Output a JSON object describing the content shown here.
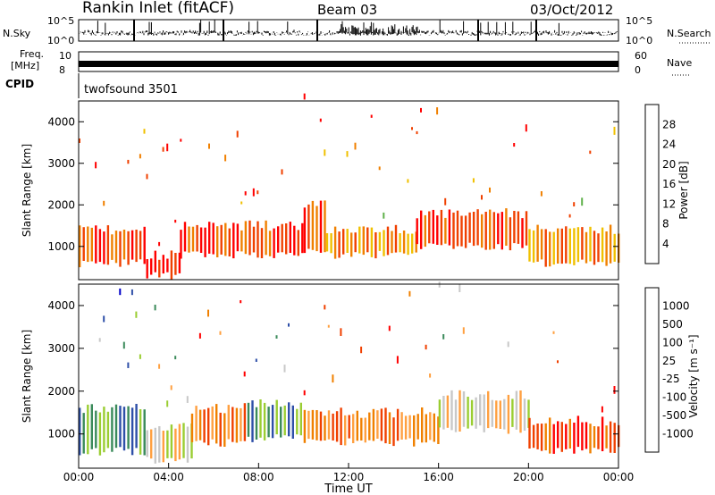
{
  "header": {
    "station": "Rankin Inlet (fitACF)",
    "beam": "Beam 03",
    "date": "03/Oct/2012"
  },
  "strips": {
    "nsky_label": "N.Sky",
    "nsky_ticks": [
      "10^5",
      "10^0"
    ],
    "nsearch_label": "N.Search",
    "nsearch_ticks": [
      "10^5",
      "10^0"
    ],
    "freq_label": "Freq.",
    "freq_unit": "[MHz]",
    "freq_ticks": [
      "10",
      "8"
    ],
    "nave_label": "Nave",
    "nave_ticks": [
      "60",
      "0"
    ],
    "cpid_label": "CPID",
    "cpid_value": "twofsound 3501"
  },
  "colors": {
    "power": [
      "#0000ff",
      "#2e4fa8",
      "#3a8a5a",
      "#5fb04a",
      "#f0c000",
      "#f08000",
      "#f04000",
      "#ff0000"
    ],
    "velocity": [
      "#ff0000",
      "#f04000",
      "#f08000",
      "#ffa040",
      "#c8c8c8",
      "#9acd32",
      "#3a8a5a",
      "#2e4fa8",
      "#0000c8"
    ]
  },
  "chart_data": [
    {
      "type": "heatmap",
      "name": "power",
      "xlabel": "",
      "ylabel": "Slant Range [km]",
      "yticks": [
        "1000",
        "2000",
        "3000",
        "4000"
      ],
      "ylim": [
        200,
        4500
      ],
      "xlim": [
        0,
        24
      ],
      "colorbar_label": "Power [dB]",
      "colorbar_ticks": [
        "4",
        "8",
        "12",
        "16",
        "20",
        "24",
        "28"
      ],
      "bands": [
        {
          "from": 0,
          "to": 3,
          "low": 600,
          "high": 1400,
          "level": 6
        },
        {
          "from": 3,
          "to": 4.5,
          "low": 300,
          "high": 800,
          "level": 7
        },
        {
          "from": 4.5,
          "to": 10,
          "low": 800,
          "high": 1500,
          "level": 6
        },
        {
          "from": 10,
          "to": 11,
          "low": 900,
          "high": 2000,
          "level": 6
        },
        {
          "from": 11,
          "to": 15,
          "low": 800,
          "high": 1400,
          "level": 5
        },
        {
          "from": 15,
          "to": 20,
          "low": 1000,
          "high": 1800,
          "level": 6
        },
        {
          "from": 20,
          "to": 24,
          "low": 600,
          "high": 1400,
          "level": 5
        }
      ]
    },
    {
      "type": "heatmap",
      "name": "velocity",
      "xlabel": "Time UT",
      "ylabel": "Slant Range [km]",
      "yticks": [
        "1000",
        "2000",
        "3000",
        "4000"
      ],
      "ylim": [
        200,
        4500
      ],
      "xlim": [
        0,
        24
      ],
      "xticks": [
        "00:00",
        "04:00",
        "08:00",
        "12:00",
        "16:00",
        "20:00",
        "00:00"
      ],
      "colorbar_label": "Velocity [m s⁻¹]",
      "colorbar_ticks": [
        "1000",
        "500",
        "100",
        "25",
        "-25",
        "-100",
        "-500",
        "-1000"
      ],
      "bands": [
        {
          "from": 0,
          "to": 3,
          "low": 600,
          "high": 1600,
          "level": 6
        },
        {
          "from": 3,
          "to": 5,
          "low": 400,
          "high": 1200,
          "level": 4
        },
        {
          "from": 5,
          "to": 7.5,
          "low": 800,
          "high": 1600,
          "level": 2
        },
        {
          "from": 7.5,
          "to": 10,
          "low": 900,
          "high": 1700,
          "level": 6
        },
        {
          "from": 10,
          "to": 16,
          "low": 800,
          "high": 1500,
          "level": 2
        },
        {
          "from": 16,
          "to": 20,
          "low": 1100,
          "high": 1900,
          "level": 4
        },
        {
          "from": 20,
          "to": 24,
          "low": 600,
          "high": 1300,
          "level": 1
        }
      ]
    }
  ]
}
